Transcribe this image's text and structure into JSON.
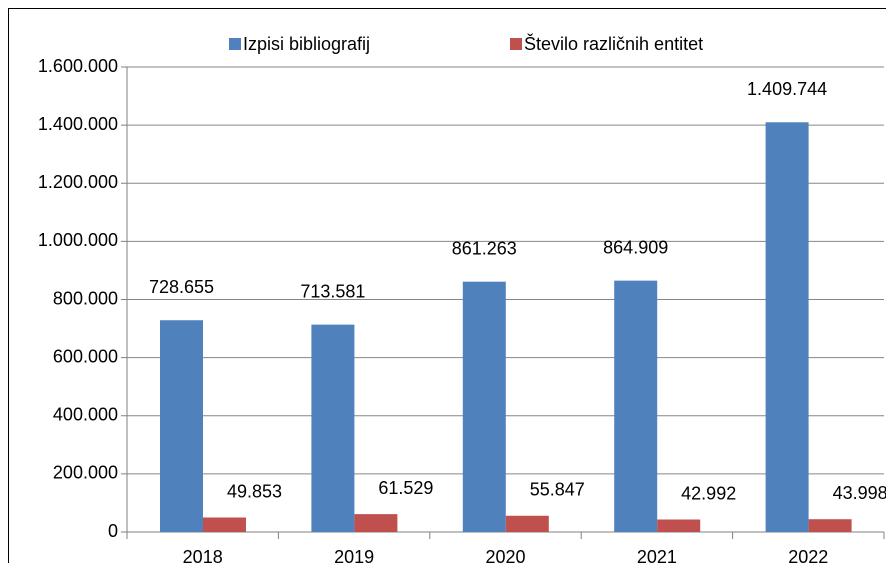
{
  "chart_data": {
    "type": "bar",
    "categories": [
      "2018",
      "2019",
      "2020",
      "2021",
      "2022"
    ],
    "series": [
      {
        "name": "Izpisi bibliografij",
        "color": "#4f81bd",
        "values": [
          728655,
          713581,
          861263,
          864909,
          1409744
        ],
        "value_labels": [
          "728.655",
          "713.581",
          "861.263",
          "864.909",
          "1.409.744"
        ]
      },
      {
        "name": "Število različnih entitet",
        "color": "#c0504d",
        "values": [
          49853,
          61529,
          55847,
          42992,
          43998
        ],
        "value_labels": [
          "49.853",
          "61.529",
          "55.847",
          "42.992",
          "43.998"
        ]
      }
    ],
    "ylim": [
      0,
      1600000
    ],
    "yticks": [
      0,
      {
        "value": 200000,
        "label": "200.000"
      },
      {
        "value": 400000,
        "label": "400.000"
      },
      {
        "value": 600000,
        "label": "600.000"
      },
      {
        "value": 800000,
        "label": "800.000"
      },
      {
        "value": 1000000,
        "label": "1.000.000"
      },
      {
        "value": 1200000,
        "label": "1.200.000"
      },
      {
        "value": 1400000,
        "label": "1.400.000"
      },
      {
        "value": 1600000,
        "label": "1.600.000"
      }
    ],
    "grid": true,
    "legend": "top"
  }
}
